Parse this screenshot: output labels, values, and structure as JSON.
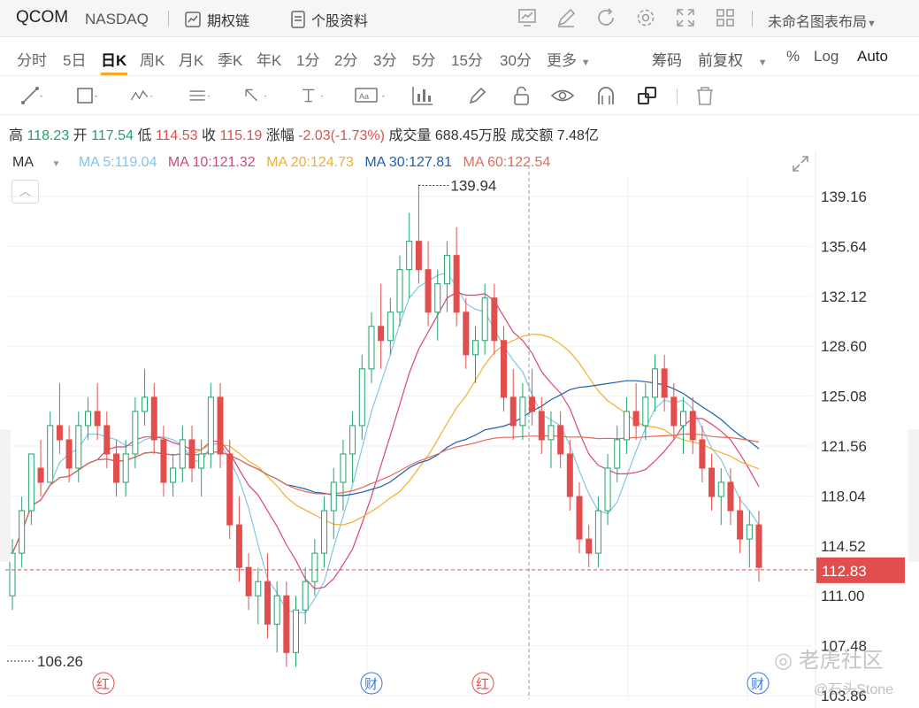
{
  "header": {
    "symbol": "QCOM",
    "exchange": "NASDAQ",
    "options_chain": "期权链",
    "profile": "个股资料",
    "layout_name": "未命名图表布局"
  },
  "periods": [
    "分时",
    "5日",
    "日K",
    "周K",
    "月K",
    "季K",
    "年K",
    "1分",
    "2分",
    "3分",
    "5分",
    "15分",
    "30分",
    "更多"
  ],
  "active_period": "日K",
  "right_controls": {
    "chips": "筹码",
    "adjust": "前复权",
    "percent": "%",
    "log": "Log",
    "auto": "Auto"
  },
  "quote": {
    "high_label": "高",
    "high": "118.23",
    "open_label": "开",
    "open": "117.54",
    "low_label": "低",
    "low": "114.53",
    "close_label": "收",
    "close": "115.19",
    "change_label": "涨幅",
    "change": "-2.03(-1.73%)",
    "volume_label": "成交量",
    "volume": "688.45万股",
    "amount_label": "成交额",
    "amount": "7.48亿"
  },
  "ma_legend": {
    "label": "MA",
    "ma5": "MA  5:119.04",
    "ma10": "MA  10:121.32",
    "ma20": "MA  20:124.73",
    "ma30": "MA  30:127.81",
    "ma60": "MA  60:122.54"
  },
  "colors": {
    "up": "#20a36b",
    "down": "#e24d4d",
    "ma5": "#7fc7e6",
    "ma10": "#d9467a",
    "ma20": "#f0b030",
    "ma30": "#1e5fb0",
    "ma60": "#e46a5a"
  },
  "chart_data": {
    "type": "candlestick",
    "y_ticks": [
      "139.16",
      "135.64",
      "132.12",
      "128.60",
      "125.08",
      "121.56",
      "118.04",
      "114.52",
      "111.00",
      "107.48",
      "103.86"
    ],
    "y_range": [
      103.86,
      139.94
    ],
    "max_label": "139.94",
    "min_label": "106.26",
    "last_price": "112.83",
    "event_markers": [
      "红",
      "财",
      "红",
      "财"
    ],
    "candles": [
      [
        111,
        115,
        110,
        114
      ],
      [
        114,
        118,
        113,
        117
      ],
      [
        117,
        121,
        116,
        121
      ],
      [
        120,
        122,
        118,
        119
      ],
      [
        119,
        124,
        119,
        123
      ],
      [
        123,
        126,
        121,
        122
      ],
      [
        122,
        123,
        119,
        120
      ],
      [
        120,
        124,
        119,
        123
      ],
      [
        123,
        125,
        122,
        124
      ],
      [
        124,
        126,
        122,
        123
      ],
      [
        123,
        124,
        120,
        121
      ],
      [
        121,
        122,
        118,
        119
      ],
      [
        119,
        122,
        118,
        121
      ],
      [
        121,
        125,
        120,
        124
      ],
      [
        124,
        127,
        123,
        125
      ],
      [
        125,
        126,
        121,
        122
      ],
      [
        122,
        123,
        118,
        119
      ],
      [
        119,
        121,
        118,
        120
      ],
      [
        120,
        123,
        119,
        122
      ],
      [
        122,
        123,
        119,
        120
      ],
      [
        120,
        122,
        118,
        121
      ],
      [
        121,
        126,
        120,
        125
      ],
      [
        125,
        126,
        120,
        121
      ],
      [
        121,
        122,
        115,
        116
      ],
      [
        116,
        118,
        112,
        113
      ],
      [
        113,
        114,
        110,
        111
      ],
      [
        111,
        113,
        109,
        112
      ],
      [
        112,
        114,
        108,
        109
      ],
      [
        109,
        112,
        107,
        111
      ],
      [
        111,
        112,
        106,
        107
      ],
      [
        107,
        111,
        106,
        110
      ],
      [
        110,
        113,
        109,
        112
      ],
      [
        112,
        115,
        111,
        114
      ],
      [
        114,
        118,
        113,
        117
      ],
      [
        117,
        120,
        115,
        119
      ],
      [
        119,
        122,
        117,
        121
      ],
      [
        121,
        124,
        119,
        123
      ],
      [
        123,
        128,
        122,
        127
      ],
      [
        127,
        131,
        126,
        130
      ],
      [
        130,
        133,
        127,
        129
      ],
      [
        129,
        132,
        128,
        131
      ],
      [
        131,
        135,
        130,
        134
      ],
      [
        134,
        138,
        132,
        136
      ],
      [
        136,
        140,
        133,
        134
      ],
      [
        134,
        136,
        130,
        131
      ],
      [
        131,
        134,
        129,
        133
      ],
      [
        133,
        136,
        131,
        135
      ],
      [
        135,
        137,
        130,
        131
      ],
      [
        131,
        132,
        127,
        128
      ],
      [
        128,
        130,
        126,
        129
      ],
      [
        129,
        133,
        128,
        132
      ],
      [
        132,
        133,
        128,
        129
      ],
      [
        129,
        130,
        124,
        125
      ],
      [
        125,
        127,
        122,
        123
      ],
      [
        123,
        126,
        122,
        125
      ],
      [
        125,
        127,
        123,
        124
      ],
      [
        124,
        125,
        121,
        122
      ],
      [
        122,
        124,
        120,
        123
      ],
      [
        123,
        124,
        120,
        121
      ],
      [
        121,
        122,
        117,
        118
      ],
      [
        118,
        119,
        114,
        115
      ],
      [
        115,
        116,
        113,
        114
      ],
      [
        114,
        118,
        113,
        117
      ],
      [
        117,
        121,
        116,
        120
      ],
      [
        120,
        123,
        119,
        122
      ],
      [
        122,
        125,
        121,
        124
      ],
      [
        124,
        126,
        122,
        123
      ],
      [
        123,
        126,
        122,
        125
      ],
      [
        125,
        128,
        124,
        127
      ],
      [
        127,
        128,
        124,
        125
      ],
      [
        125,
        126,
        122,
        123
      ],
      [
        123,
        125,
        121,
        124
      ],
      [
        124,
        125,
        121,
        122
      ],
      [
        122,
        123,
        119,
        120
      ],
      [
        120,
        121,
        117,
        118
      ],
      [
        118,
        120,
        116,
        119
      ],
      [
        119,
        120,
        116,
        117
      ],
      [
        117,
        118,
        114,
        115
      ],
      [
        115,
        117,
        113,
        116
      ],
      [
        116,
        117,
        112,
        113
      ]
    ]
  }
}
